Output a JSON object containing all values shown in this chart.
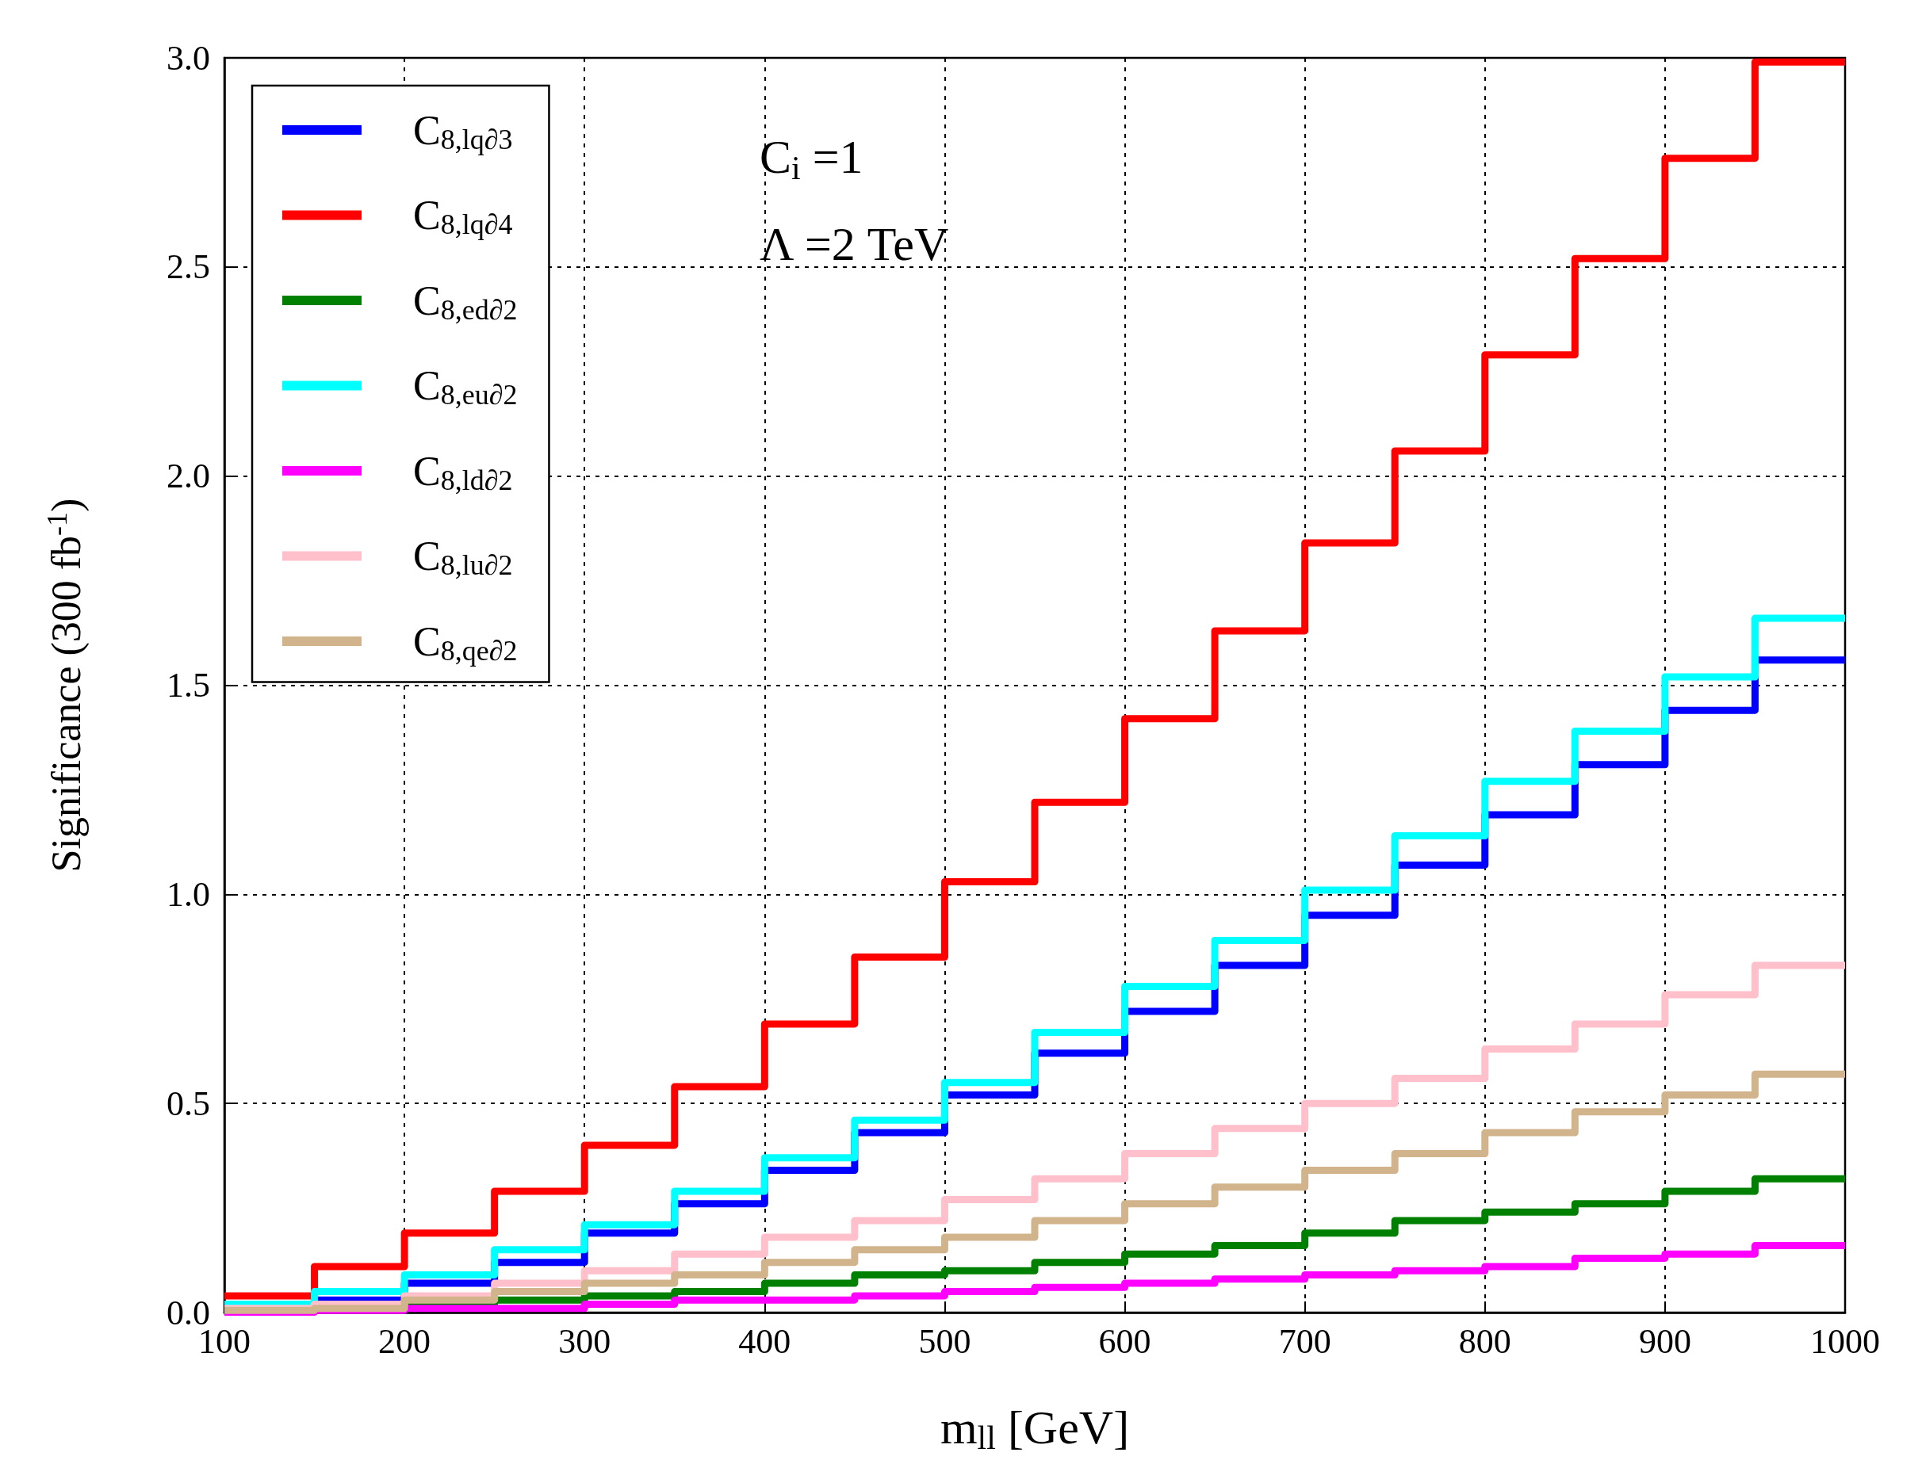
{
  "chart_data": {
    "type": "step",
    "xlabel": "m$_{ll}$ [GeV]",
    "ylabel": "Significance (300 fb$^{-1}$)",
    "annotations": [
      "C$_{i}$ =1",
      "Λ =2 TeV"
    ],
    "x": [
      100,
      150,
      200,
      250,
      300,
      350,
      400,
      450,
      500,
      550,
      600,
      650,
      700,
      750,
      800,
      850,
      900,
      950,
      1000
    ],
    "xlim": [
      100,
      1000
    ],
    "xticks": [
      100,
      200,
      300,
      400,
      500,
      600,
      700,
      800,
      900,
      1000
    ],
    "ylim": [
      0,
      3.0
    ],
    "yticks": [
      {
        "value": 0,
        "label": "0.0"
      },
      {
        "value": 0.5,
        "label": "0.5"
      },
      {
        "value": 1,
        "label": "1.0"
      },
      {
        "value": 1.5,
        "label": "1.5"
      },
      {
        "value": 2,
        "label": "2.0"
      },
      {
        "value": 2.5,
        "label": "2.5"
      },
      {
        "value": 3,
        "label": "3.0"
      }
    ],
    "grid": true,
    "legend": "top left",
    "marker": "none",
    "line_style": "solid",
    "series": [
      {
        "name": "C$_{8,lq∂3}$",
        "color": "#0000ff",
        "values": [
          null,
          0.03,
          0.07,
          0.12,
          0.19,
          0.26,
          0.34,
          0.43,
          0.52,
          0.62,
          0.72,
          0.83,
          0.95,
          1.07,
          1.19,
          1.31,
          1.44,
          1.56,
          1.56
        ]
      },
      {
        "name": "C$_{8,lq∂4}$",
        "color": "#ff0000",
        "values": [
          0.04,
          0.11,
          0.19,
          0.29,
          0.4,
          0.54,
          0.69,
          0.85,
          1.03,
          1.22,
          1.42,
          1.63,
          1.84,
          2.06,
          2.29,
          2.52,
          2.76,
          2.99,
          2.99
        ]
      },
      {
        "name": "C$_{8,ed∂2}$",
        "color": "#008000",
        "values": [
          0.003,
          null,
          0.02,
          0.03,
          0.04,
          0.05,
          0.07,
          0.09,
          0.1,
          0.12,
          0.14,
          0.16,
          0.19,
          0.22,
          0.24,
          0.26,
          0.29,
          0.32,
          0.32
        ]
      },
      {
        "name": "C$_{8,eu∂2}$",
        "color": "#00ffff",
        "values": [
          0.02,
          0.05,
          0.09,
          0.15,
          0.21,
          0.29,
          0.37,
          0.46,
          0.55,
          0.67,
          0.78,
          0.89,
          1.01,
          1.14,
          1.27,
          1.39,
          1.52,
          1.66,
          1.66
        ]
      },
      {
        "name": "C$_{8,ld∂2}$",
        "color": "#ff00ff",
        "values": [
          0.001,
          0.005,
          0.01,
          0.01,
          0.02,
          0.03,
          0.03,
          0.04,
          0.05,
          0.06,
          0.07,
          0.08,
          0.09,
          0.1,
          0.11,
          0.13,
          0.14,
          0.16,
          0.16
        ]
      },
      {
        "name": "C$_{8,lu∂2}$",
        "color": "#ffc0cb",
        "values": [
          0.01,
          0.02,
          0.04,
          0.07,
          0.1,
          0.14,
          0.18,
          0.22,
          0.27,
          0.32,
          0.38,
          0.44,
          0.5,
          0.56,
          0.63,
          0.69,
          0.76,
          0.83,
          0.83
        ]
      },
      {
        "name": "C$_{8,qe∂2}$",
        "color": "#d2b48c",
        "values": [
          0.005,
          0.01,
          0.03,
          0.05,
          0.07,
          0.09,
          0.12,
          0.15,
          0.18,
          0.22,
          0.26,
          0.3,
          0.34,
          0.38,
          0.43,
          0.48,
          0.52,
          0.57,
          0.57
        ]
      }
    ]
  }
}
